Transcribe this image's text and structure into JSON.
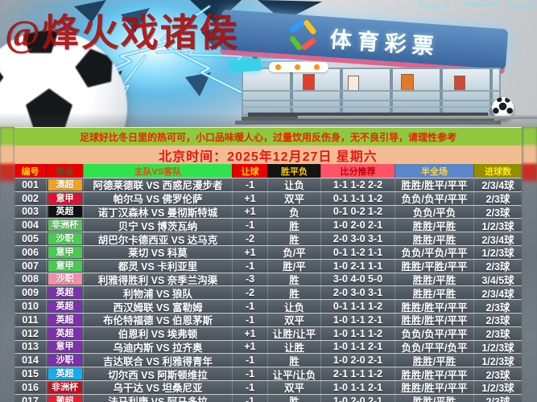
{
  "watermark": "@烽火戏诸侯",
  "hero": {
    "store_sign": "体育彩票",
    "icons": [
      "soccer-ball-large",
      "electric-burst",
      "lottery-storefront",
      "soccer-ball-small"
    ]
  },
  "notice": "足球好比冬日里的热可可，小口品味暖人心，过量饮用反伤身，无不良引导，请理性参考",
  "datetime_banner": "北京时间：2025年12月27日 星期六",
  "table": {
    "headers": [
      {
        "label": "编号",
        "bg": "#e80000",
        "fg": "#ffd000"
      },
      {
        "label": "赛事",
        "bg": "#e80000",
        "fg": "#6b4a2a"
      },
      {
        "label": "主队VS客队",
        "bg": "#2fe34f",
        "fg": "#f04010"
      },
      {
        "label": "让球",
        "bg": "#e80000",
        "fg": "#ffd000"
      },
      {
        "label": "胜平负",
        "bg": "#141414",
        "fg": "#ffd000"
      },
      {
        "label": "比分推荐",
        "bg": "#ff5468",
        "fg": "#c00000"
      },
      {
        "label": "半全场",
        "bg": "#5b86c8",
        "fg": "#ffd84a"
      },
      {
        "label": "进球数",
        "bg": "#938d00",
        "fg": "#ffe81a"
      }
    ],
    "rows": [
      {
        "id": "001",
        "league": "澳超",
        "league_color": "#f0a125",
        "match": "阿德莱德联 VS 西惑尼漫步者",
        "handicap": "-1",
        "wdl": "让负",
        "score": "1-1 1-2 2-2",
        "half_full": "胜胜/胜平/平平",
        "goals": "2/3/4球"
      },
      {
        "id": "002",
        "league": "意甲",
        "league_color": "#e01030",
        "match": "帕尔马 VS 佛罗伦萨",
        "handicap": "+1",
        "wdl": "双平",
        "score": "0-1 1-1 1-2",
        "half_full": "负负/负平/平平",
        "goals": "2/3球"
      },
      {
        "id": "003",
        "league": "英超",
        "league_color": "#101010",
        "match": "诺丁汉森林 VS 曼彻斯特城",
        "handicap": "+1",
        "wdl": "负",
        "score": "0-1 0-2 1-2",
        "half_full": "负负/平负",
        "goals": "2/3球"
      },
      {
        "id": "004",
        "league": "非洲杯",
        "league_color": "#5fc060",
        "match": "贝宁 VS 博茨瓦纳",
        "handicap": "-1",
        "wdl": "胜",
        "score": "1-0 2-0 2-1",
        "half_full": "胜胜/平胜",
        "goals": "1/2/3球"
      },
      {
        "id": "005",
        "league": "沙职",
        "league_color": "#48cc50",
        "match": "胡巴尔卡德西亚 VS 达马克",
        "handicap": "-2",
        "wdl": "胜",
        "score": "2-0 3-0 3-1",
        "half_full": "胜胜/平胜",
        "goals": "2/3/4球"
      },
      {
        "id": "006",
        "league": "意甲",
        "league_color": "#48cc50",
        "match": "莱切 VS 科莫",
        "handicap": "+1",
        "wdl": "负/平",
        "score": "0-1 1-2 1-1",
        "half_full": "负负/平负/平平",
        "goals": "1/2/3球"
      },
      {
        "id": "007",
        "league": "意甲",
        "league_color": "#48cc50",
        "match": "都灵 VS 卡利亚里",
        "handicap": "-1",
        "wdl": "胜/平",
        "score": "1-0 2-1 1-1",
        "half_full": "胜胜/平胜/平平",
        "goals": "2/3球"
      },
      {
        "id": "008",
        "league": "沙职",
        "league_color": "#f08fa8",
        "match": "利雅得胜利 VS 奈季兰沟渠",
        "handicap": "-3",
        "wdl": "胜",
        "score": "3-0 4-0 5-0",
        "half_full": "胜胜/平胜",
        "goals": "3/4/5球"
      },
      {
        "id": "009",
        "league": "英超",
        "league_color": "#7d2fad",
        "match": "利物浦 VS 狼队",
        "handicap": "-2",
        "wdl": "胜",
        "score": "2-0 3-0 3-1",
        "half_full": "胜胜/平胜",
        "goals": "2/3/4球"
      },
      {
        "id": "010",
        "league": "英超",
        "league_color": "#7d2fad",
        "match": "西汉姆联 VS 富勒姆",
        "handicap": "-1",
        "wdl": "让负",
        "score": "0-1 1-1 1-2",
        "half_full": "胜胜/胜平/平平",
        "goals": "2/3球"
      },
      {
        "id": "011",
        "league": "英超",
        "league_color": "#7d2fad",
        "match": "布伦特福德 VS 伯恩茅斯",
        "handicap": "-1",
        "wdl": "双平",
        "score": "1-0 1-1 2-1",
        "half_full": "胜胜/胜平/平平",
        "goals": "2/3球"
      },
      {
        "id": "012",
        "league": "英超",
        "league_color": "#7d2fad",
        "match": "伯恩利 VS 埃弗顿",
        "handicap": "+1",
        "wdl": "让胜/让平",
        "score": "1-0 1-1 1-2",
        "half_full": "负负/负平/平平",
        "goals": "2/3球"
      },
      {
        "id": "013",
        "league": "意甲",
        "league_color": "#7d2fad",
        "match": "乌迪内斯 VS 拉齐奥",
        "handicap": "+1",
        "wdl": "让胜",
        "score": "1-0 1-1 2-1",
        "half_full": "负负/平平/负平",
        "goals": "1/2/3球"
      },
      {
        "id": "014",
        "league": "沙职",
        "league_color": "#7d2fad",
        "match": "吉达联合 VS 利雅得青年",
        "handicap": "-1",
        "wdl": "胜",
        "score": "1-0 2-0 2-1",
        "half_full": "胜胜/平胜",
        "goals": "1/2/3球"
      },
      {
        "id": "015",
        "league": "英超",
        "league_color": "#15aef0",
        "match": "切尔西 VS 阿斯顿维拉",
        "handicap": "-1",
        "wdl": "让平/让负",
        "score": "2-1 1-1 1-2",
        "half_full": "胜胜/胜平/平平",
        "goals": "2/3球"
      },
      {
        "id": "016",
        "league": "非洲杯",
        "league_color": "#c01020",
        "match": "乌干达 VS 坦桑尼亚",
        "handicap": "-1",
        "wdl": "双平",
        "score": "1-0 1-1 2-1",
        "half_full": "胜胜/胜平/平平",
        "goals": "1/2/3球"
      },
      {
        "id": "017",
        "league": "葡超",
        "league_color": "#e02030",
        "match": "法马利康 VS 阿马多拉",
        "handicap": "-1",
        "wdl": "胜",
        "score": "1-0 2-0 2-1",
        "half_full": "胜胜/平胜",
        "goals": "2/3球"
      }
    ]
  }
}
